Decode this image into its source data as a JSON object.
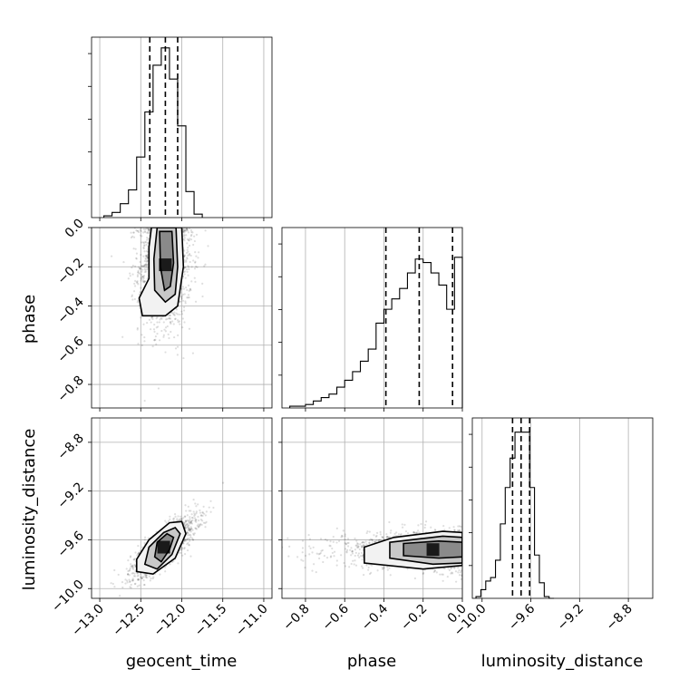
{
  "chart_data": {
    "type": "corner",
    "parameters": [
      "geocent_time",
      "phase",
      "luminosity_distance"
    ],
    "grid": true,
    "quantile_lines": "dashed",
    "hist_axis_tick_labels": "hidden",
    "axes": {
      "geocent_time": {
        "range": [
          -13.1,
          -10.9
        ],
        "ticks": [
          -13.0,
          -12.5,
          -12.0,
          -11.5,
          -11.0
        ],
        "tick_labels": [
          "−13.0",
          "−12.5",
          "−12.0",
          "−11.5",
          "−11.0"
        ]
      },
      "phase": {
        "range": [
          -0.92,
          0.0
        ],
        "ticks": [
          -0.8,
          -0.6,
          -0.4,
          -0.2,
          0.0
        ],
        "tick_labels": [
          "−0.8",
          "−0.6",
          "−0.4",
          "−0.2",
          "0.0"
        ]
      },
      "luminosity_distance": {
        "range": [
          -10.08,
          -8.6
        ],
        "ticks": [
          -10.0,
          -9.6,
          -9.2,
          -8.8
        ],
        "tick_labels": [
          "−10.0",
          "−9.6",
          "−9.2",
          "−8.8"
        ]
      }
    },
    "marginals": {
      "geocent_time": {
        "quantiles": [
          -12.39,
          -12.2,
          -12.05
        ],
        "bin_edges": [
          -12.95,
          -12.85,
          -12.75,
          -12.65,
          -12.55,
          -12.45,
          -12.35,
          -12.25,
          -12.15,
          -12.05,
          -11.95,
          -11.85,
          -11.75
        ],
        "counts": [
          0.01,
          0.03,
          0.08,
          0.16,
          0.35,
          0.61,
          0.88,
          0.98,
          0.8,
          0.53,
          0.15,
          0.02
        ]
      },
      "phase": {
        "quantiles": [
          -0.39,
          -0.22,
          -0.05
        ],
        "bin_edges": [
          -0.88,
          -0.84,
          -0.8,
          -0.76,
          -0.72,
          -0.68,
          -0.64,
          -0.6,
          -0.56,
          -0.52,
          -0.48,
          -0.44,
          -0.4,
          -0.36,
          -0.32,
          -0.28,
          -0.24,
          -0.2,
          -0.16,
          -0.12,
          -0.08,
          -0.04,
          0.0
        ],
        "counts": [
          0.01,
          0.01,
          0.02,
          0.04,
          0.06,
          0.08,
          0.12,
          0.16,
          0.21,
          0.27,
          0.34,
          0.49,
          0.57,
          0.63,
          0.69,
          0.78,
          0.86,
          0.84,
          0.78,
          0.71,
          0.57,
          0.87
        ]
      },
      "luminosity_distance": {
        "quantiles": [
          -9.75,
          -9.68,
          -9.61
        ],
        "bin_edges": [
          -10.05,
          -10.01,
          -9.97,
          -9.93,
          -9.89,
          -9.85,
          -9.81,
          -9.77,
          -9.73,
          -9.69,
          -9.65,
          -9.61,
          -9.57,
          -9.53,
          -9.49,
          -9.45,
          -9.41
        ],
        "counts": [
          0.01,
          0.05,
          0.1,
          0.12,
          0.22,
          0.43,
          0.64,
          0.81,
          0.96,
          0.96,
          0.96,
          0.64,
          0.25,
          0.09,
          0.01,
          0.0
        ]
      }
    },
    "joint": [
      {
        "x": "geocent_time",
        "y": "phase",
        "center": [
          -12.2,
          -0.19
        ],
        "spread": [
          0.13,
          0.13
        ],
        "correlation": 0.05,
        "contours": [
          [
            [
              -12.27,
              -0.02
            ],
            [
              -12.12,
              -0.02
            ],
            [
              -12.1,
              -0.18
            ],
            [
              -12.14,
              -0.3
            ],
            [
              -12.21,
              -0.32
            ],
            [
              -12.26,
              -0.2
            ]
          ],
          [
            [
              -12.3,
              0.0
            ],
            [
              -12.07,
              0.0
            ],
            [
              -12.05,
              -0.2
            ],
            [
              -12.08,
              -0.34
            ],
            [
              -12.2,
              -0.38
            ],
            [
              -12.33,
              -0.32
            ],
            [
              -12.34,
              -0.16
            ]
          ],
          [
            [
              -12.37,
              0.0
            ],
            [
              -12.0,
              0.0
            ],
            [
              -11.98,
              -0.2
            ],
            [
              -12.05,
              -0.4
            ],
            [
              -12.2,
              -0.45
            ],
            [
              -12.48,
              -0.45
            ],
            [
              -12.52,
              -0.36
            ],
            [
              -12.4,
              -0.26
            ],
            [
              -12.4,
              -0.1
            ]
          ]
        ]
      },
      {
        "x": "geocent_time",
        "y": "luminosity_distance",
        "center": [
          -12.22,
          -9.66
        ],
        "spread": [
          0.16,
          0.1
        ],
        "correlation": 0.82,
        "contours": [
          [
            [
              -12.33,
              -9.74
            ],
            [
              -12.25,
              -9.78
            ],
            [
              -12.15,
              -9.68
            ],
            [
              -12.1,
              -9.58
            ],
            [
              -12.18,
              -9.55
            ],
            [
              -12.3,
              -9.62
            ]
          ],
          [
            [
              -12.45,
              -9.8
            ],
            [
              -12.3,
              -9.84
            ],
            [
              -12.12,
              -9.72
            ],
            [
              -12.02,
              -9.55
            ],
            [
              -12.08,
              -9.5
            ],
            [
              -12.22,
              -9.54
            ],
            [
              -12.4,
              -9.66
            ]
          ],
          [
            [
              -12.55,
              -9.86
            ],
            [
              -12.35,
              -9.88
            ],
            [
              -12.08,
              -9.75
            ],
            [
              -11.95,
              -9.55
            ],
            [
              -12.0,
              -9.45
            ],
            [
              -12.15,
              -9.46
            ],
            [
              -12.4,
              -9.6
            ],
            [
              -12.55,
              -9.76
            ]
          ]
        ]
      },
      {
        "x": "phase",
        "y": "luminosity_distance",
        "center": [
          -0.15,
          -9.68
        ],
        "spread": [
          0.2,
          0.06
        ],
        "correlation": 0.0,
        "contours": [
          [
            [
              -0.3,
              -9.63
            ],
            [
              -0.12,
              -9.61
            ],
            [
              0.0,
              -9.62
            ],
            [
              0.0,
              -9.74
            ],
            [
              -0.12,
              -9.75
            ],
            [
              -0.3,
              -9.73
            ]
          ],
          [
            [
              -0.37,
              -9.62
            ],
            [
              -0.1,
              -9.57
            ],
            [
              0.0,
              -9.58
            ],
            [
              0.0,
              -9.79
            ],
            [
              -0.15,
              -9.8
            ],
            [
              -0.37,
              -9.75
            ]
          ],
          [
            [
              -0.5,
              -9.66
            ],
            [
              -0.35,
              -9.58
            ],
            [
              -0.1,
              -9.53
            ],
            [
              0.0,
              -9.54
            ],
            [
              0.0,
              -9.81
            ],
            [
              -0.2,
              -9.84
            ],
            [
              -0.5,
              -9.79
            ]
          ]
        ]
      }
    ]
  }
}
